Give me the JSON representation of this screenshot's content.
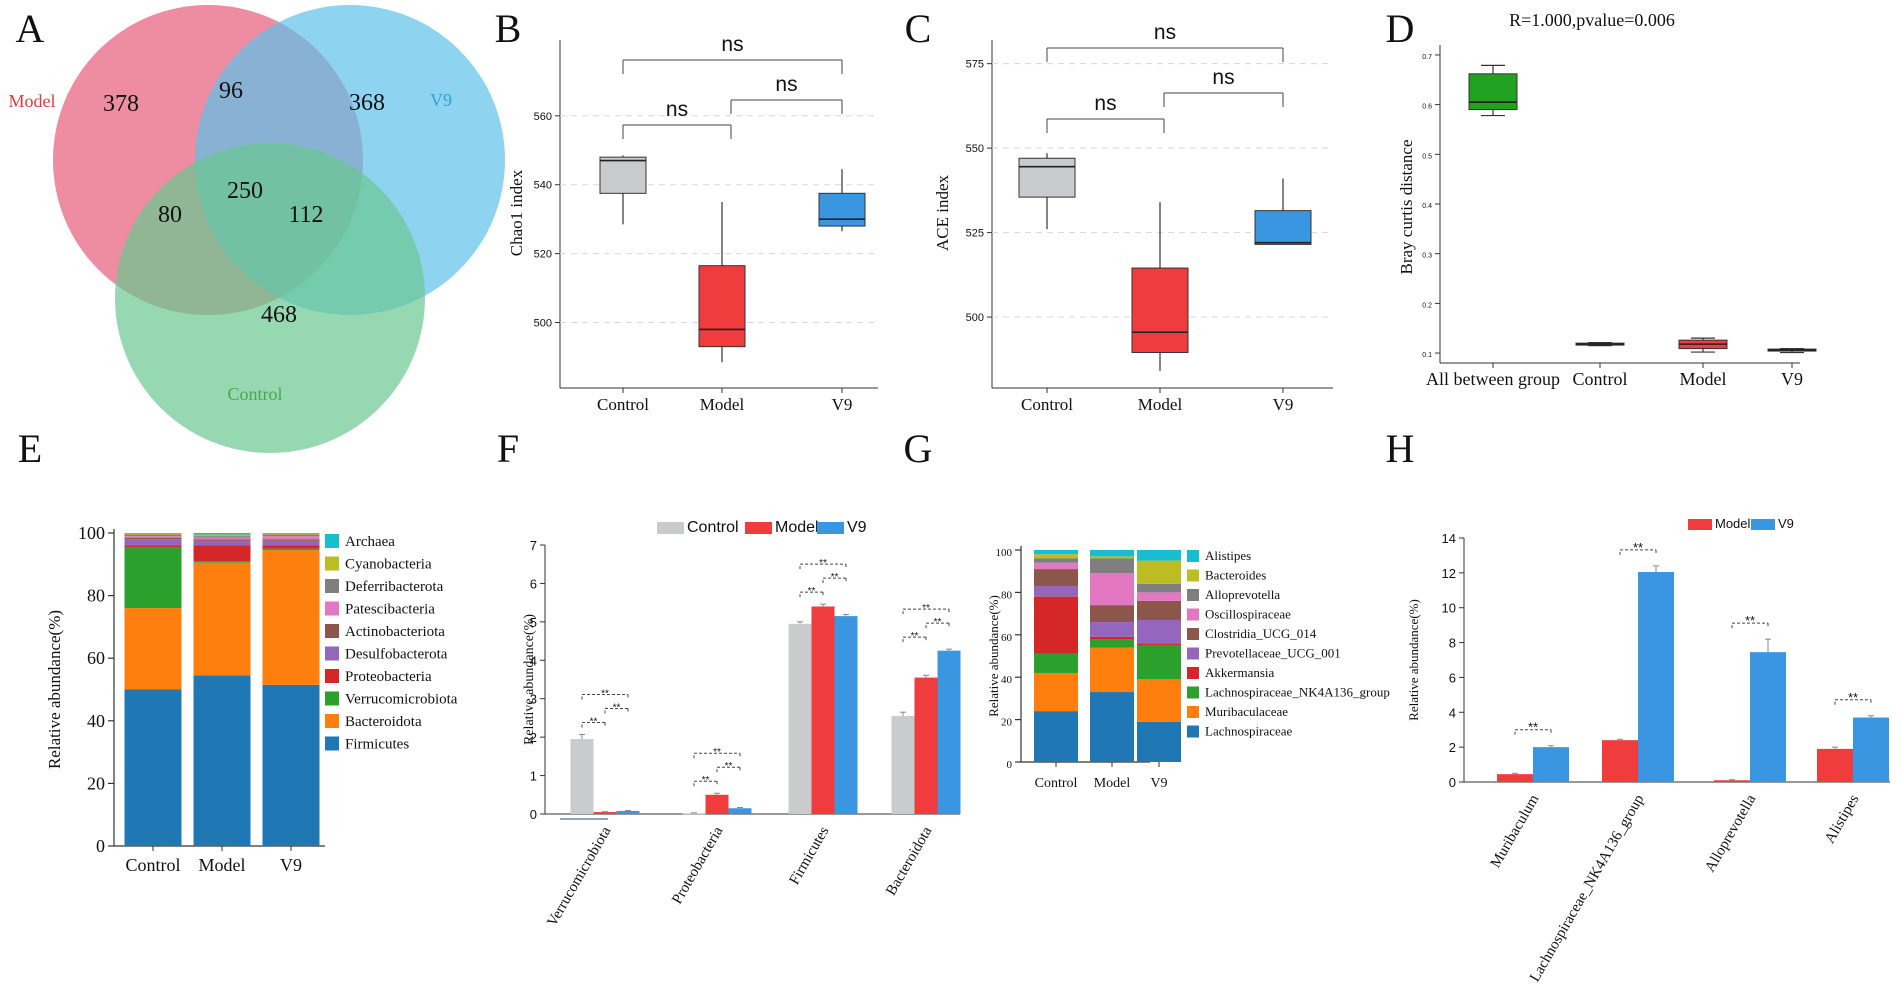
{
  "panel_labels": [
    "A",
    "B",
    "C",
    "D",
    "E",
    "F",
    "G",
    "H"
  ],
  "colors": {
    "control": "#c9cccc",
    "model": "#f03c3c",
    "v9": "#3a96e0",
    "green": "#22a022",
    "navy": "#1f4f8a",
    "venn_model": "#e96c88",
    "venn_v9": "#5ec0ea",
    "venn_control": "#69c790",
    "venn_model_text": "#e23a3a",
    "venn_v9_text": "#2ea3dc",
    "venn_control_text": "#4aa84a"
  },
  "chart_data": [
    {
      "panel": "A",
      "type": "venn",
      "sets": [
        "Model",
        "V9",
        "Control"
      ],
      "regions": {
        "model_only": 378,
        "v9_only": 368,
        "control_only": 468,
        "model_v9": 96,
        "model_control": 80,
        "v9_control": 112,
        "all": 250
      }
    },
    {
      "panel": "B",
      "type": "boxplot",
      "ylabel": "Chao1 index",
      "categories": [
        "Control",
        "Model",
        "V9"
      ],
      "ylim": [
        481,
        582
      ],
      "yticks": [
        500,
        520,
        540,
        560
      ],
      "boxes": [
        {
          "name": "Control",
          "min": 528.5,
          "q1": 537.5,
          "median": 547,
          "q3": 548,
          "max": 548.5
        },
        {
          "name": "Model",
          "min": 488.5,
          "q1": 493,
          "median": 498,
          "q3": 516.5,
          "max": 535
        },
        {
          "name": "V9",
          "min": 526.5,
          "q1": 528,
          "median": 530,
          "q3": 537.5,
          "max": 544.5
        }
      ],
      "significance": [
        {
          "from": "Control",
          "to": "Model",
          "label": "ns"
        },
        {
          "from": "Model",
          "to": "V9",
          "label": "ns"
        },
        {
          "from": "Control",
          "to": "V9",
          "label": "ns"
        }
      ]
    },
    {
      "panel": "C",
      "type": "boxplot",
      "ylabel": "ACE index",
      "categories": [
        "Control",
        "Model",
        "V9"
      ],
      "ylim": [
        479,
        582
      ],
      "yticks": [
        500,
        525,
        550,
        575
      ],
      "boxes": [
        {
          "name": "Control",
          "min": 526,
          "q1": 535.5,
          "median": 544.5,
          "q3": 547,
          "max": 548.5
        },
        {
          "name": "Model",
          "min": 484,
          "q1": 489.5,
          "median": 495.5,
          "q3": 514.5,
          "max": 534
        },
        {
          "name": "V9",
          "min": 521.5,
          "q1": 521.5,
          "median": 522,
          "q3": 531.5,
          "max": 541
        }
      ],
      "significance": [
        {
          "from": "Control",
          "to": "Model",
          "label": "ns"
        },
        {
          "from": "Model",
          "to": "V9",
          "label": "ns"
        },
        {
          "from": "Control",
          "to": "V9",
          "label": "ns"
        }
      ]
    },
    {
      "panel": "D",
      "type": "boxplot",
      "title": "R=1.000,pvalue=0.006",
      "ylabel": "Bray curtis distance",
      "categories": [
        "All between group",
        "Control",
        "Model",
        "V9"
      ],
      "ylim": [
        0.08,
        0.72
      ],
      "yticks": [
        0.1,
        0.2,
        0.3,
        0.4,
        0.5,
        0.6,
        0.7
      ],
      "boxes": [
        {
          "name": "All between group",
          "min": 0.578,
          "q1": 0.59,
          "median": 0.605,
          "q3": 0.662,
          "max": 0.679
        },
        {
          "name": "Control",
          "min": 0.115,
          "q1": 0.116,
          "median": 0.118,
          "q3": 0.12,
          "max": 0.121
        },
        {
          "name": "Model",
          "min": 0.102,
          "q1": 0.109,
          "median": 0.118,
          "q3": 0.126,
          "max": 0.13
        },
        {
          "name": "V9",
          "min": 0.101,
          "q1": 0.104,
          "median": 0.106,
          "q3": 0.108,
          "max": 0.109
        }
      ]
    },
    {
      "panel": "E",
      "type": "stacked_bar",
      "ylabel": "Relative abundance(%)",
      "categories": [
        "Control",
        "Model",
        "V9"
      ],
      "ylim": [
        0,
        100
      ],
      "yticks": [
        0,
        20,
        40,
        60,
        80,
        100
      ],
      "legend": [
        "Archaea",
        "Cyanobacteria",
        "Deferribacterota",
        "Patescibacteria",
        "Actinobacteriota",
        "Desulfobacterota",
        "Proteobacteria",
        "Verrucomicrobiota",
        "Bacteroidota",
        "Firmicutes"
      ],
      "series": [
        {
          "name": "Firmicutes",
          "color": "#1f77b4",
          "values": [
            50,
            54.5,
            51.5
          ]
        },
        {
          "name": "Bacteroidota",
          "color": "#ff7f0e",
          "values": [
            26,
            36,
            43
          ]
        },
        {
          "name": "Verrucomicrobiota",
          "color": "#2ca02c",
          "values": [
            19.5,
            0.5,
            0.5
          ]
        },
        {
          "name": "Proteobacteria",
          "color": "#d62728",
          "values": [
            0.5,
            5,
            1
          ]
        },
        {
          "name": "Desulfobacterota",
          "color": "#9467bd",
          "values": [
            2,
            1.5,
            1.5
          ]
        },
        {
          "name": "Actinobacteriota",
          "color": "#8c564b",
          "values": [
            0.5,
            0.5,
            0.5
          ]
        },
        {
          "name": "Patescibacteria",
          "color": "#e377c2",
          "values": [
            0.5,
            0.5,
            1
          ]
        },
        {
          "name": "Deferribacterota",
          "color": "#7f7f7f",
          "values": [
            0.5,
            0.5,
            0.5
          ]
        },
        {
          "name": "Cyanobacteria",
          "color": "#bcbd22",
          "values": [
            0.25,
            0.5,
            0.25
          ]
        },
        {
          "name": "Archaea",
          "color": "#17becf",
          "values": [
            0.25,
            0.5,
            0.25
          ]
        }
      ]
    },
    {
      "panel": "F",
      "type": "grouped_bar",
      "ylabel": "Relative abundance(%)",
      "categories": [
        "Verrucomicrobiota",
        "Proteobacteria",
        "Firmicutes",
        "Bacteroidota"
      ],
      "ylim": [
        0,
        7
      ],
      "yticks": [
        0,
        1,
        2,
        3,
        4,
        5,
        6,
        7
      ],
      "series": [
        {
          "name": "Control",
          "values": [
            1.95,
            0.02,
            4.95,
            2.55
          ],
          "errors": [
            0.12,
            0.01,
            0.05,
            0.1
          ]
        },
        {
          "name": "Model",
          "values": [
            0.05,
            0.5,
            5.4,
            3.55
          ],
          "errors": [
            0.01,
            0.04,
            0.06,
            0.06
          ]
        },
        {
          "name": "V9",
          "values": [
            0.08,
            0.15,
            5.15,
            4.25
          ],
          "errors": [
            0.01,
            0.02,
            0.04,
            0.04
          ]
        }
      ],
      "sig_label": "**"
    },
    {
      "panel": "G",
      "type": "stacked_bar",
      "ylabel": "Relative abundance(%)",
      "categories": [
        "Control",
        "Model",
        "V9"
      ],
      "ylim": [
        0,
        100
      ],
      "yticks": [
        0,
        20,
        40,
        60,
        80,
        100
      ],
      "legend": [
        "Alistipes",
        "Bacteroides",
        "Alloprevotella",
        "Oscillospiraceae",
        "Clostridia_UCG_014",
        "Prevotellaceae_UCG_001",
        "Akkermansia",
        "Lachnospiraceae_NK4A136_group",
        "Muribaculaceae",
        "Lachnospiraceae"
      ],
      "series": [
        {
          "name": "Lachnospiraceae",
          "color": "#1f77b4",
          "values": [
            24,
            33,
            19
          ]
        },
        {
          "name": "Muribaculaceae",
          "color": "#ff7f0e",
          "values": [
            18,
            21,
            20
          ]
        },
        {
          "name": "Lachnospiraceae_NK4A136_group",
          "color": "#2ca02c",
          "values": [
            9,
            4,
            16
          ]
        },
        {
          "name": "Akkermansia",
          "color": "#d62728",
          "values": [
            27,
            1,
            1
          ]
        },
        {
          "name": "Prevotellaceae_UCG_001",
          "color": "#9467bd",
          "values": [
            5,
            7,
            11
          ]
        },
        {
          "name": "Clostridia_UCG_014",
          "color": "#8c564b",
          "values": [
            8,
            8,
            9
          ]
        },
        {
          "name": "Oscillospiraceae",
          "color": "#e377c2",
          "values": [
            3,
            15,
            4
          ]
        },
        {
          "name": "Alloprevotella",
          "color": "#7f7f7f",
          "values": [
            2,
            7,
            4
          ]
        },
        {
          "name": "Bacteroides",
          "color": "#bcbd22",
          "values": [
            2,
            1,
            11
          ]
        },
        {
          "name": "Alistipes",
          "color": "#17becf",
          "values": [
            2,
            3,
            5
          ]
        }
      ]
    },
    {
      "panel": "H",
      "type": "grouped_bar",
      "ylabel": "Relative abundance(%)",
      "categories": [
        "Muribaculum",
        "Lachnospiraceae_NK4A136_group",
        "Alloprevotella",
        "Alistipes"
      ],
      "ylim": [
        0,
        14
      ],
      "yticks": [
        0,
        2,
        4,
        6,
        8,
        10,
        12,
        14
      ],
      "series": [
        {
          "name": "Model",
          "values": [
            0.45,
            2.4,
            0.1,
            1.9
          ],
          "errors": [
            0.05,
            0.05,
            0.03,
            0.1
          ]
        },
        {
          "name": "V9",
          "values": [
            2.0,
            12.05,
            7.45,
            3.7
          ],
          "errors": [
            0.08,
            0.35,
            0.75,
            0.1
          ]
        }
      ],
      "sig_label": "**"
    }
  ]
}
